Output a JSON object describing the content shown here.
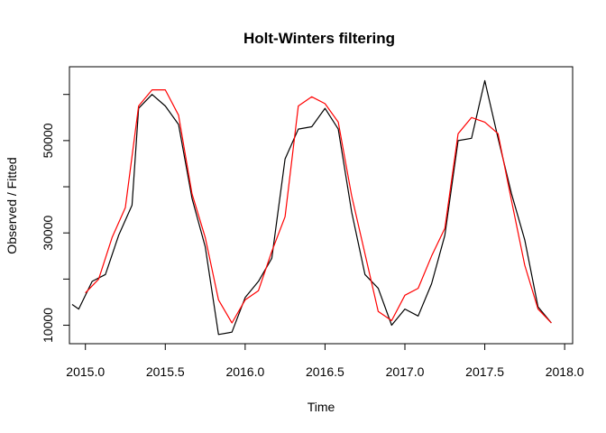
{
  "chart_data": {
    "type": "line",
    "title": "Holt-Winters filtering",
    "xlabel": "Time",
    "ylabel": "Observed / Fitted",
    "xlim": [
      2014.9,
      2018.05
    ],
    "ylim": [
      6000,
      66000
    ],
    "x_ticks": [
      2015.0,
      2015.5,
      2016.0,
      2016.5,
      2017.0,
      2017.5,
      2018.0
    ],
    "x_tick_labels": [
      "2015.0",
      "2015.5",
      "2016.0",
      "2016.5",
      "2017.0",
      "2017.5",
      "2018.0"
    ],
    "y_ticks": [
      10000,
      30000,
      50000
    ],
    "y_tick_labels": [
      "10000",
      "30000",
      "50000"
    ],
    "grid": false,
    "series": [
      {
        "color": "#000000",
        "x": [
          2014.917,
          2014.958,
          2015.042,
          2015.125,
          2015.208,
          2015.292,
          2015.333,
          2015.417,
          2015.5,
          2015.583,
          2015.667,
          2015.75,
          2015.833,
          2015.917,
          2016.0,
          2016.083,
          2016.167,
          2016.25,
          2016.333,
          2016.417,
          2016.5,
          2016.583,
          2016.667,
          2016.75,
          2016.833,
          2016.917,
          2017.0,
          2017.083,
          2017.167,
          2017.25,
          2017.333,
          2017.417,
          2017.5,
          2017.583,
          2017.667,
          2017.75,
          2017.833,
          2017.917
        ],
        "values": [
          14500,
          13500,
          19500,
          21000,
          29500,
          36000,
          57000,
          60000,
          57500,
          53500,
          37500,
          27000,
          8000,
          8500,
          16000,
          19500,
          24500,
          46000,
          52500,
          53000,
          57000,
          52500,
          34500,
          21000,
          18000,
          10000,
          13500,
          12000,
          19000,
          29500,
          50000,
          50500,
          63000,
          50500,
          38500,
          28500,
          14000,
          10500
        ]
      },
      {
        "color": "#ff0000",
        "x": [
          2015.0,
          2015.083,
          2015.167,
          2015.25,
          2015.333,
          2015.417,
          2015.5,
          2015.583,
          2015.667,
          2015.75,
          2015.833,
          2015.917,
          2016.0,
          2016.083,
          2016.167,
          2016.25,
          2016.333,
          2016.417,
          2016.5,
          2016.583,
          2016.667,
          2016.75,
          2016.833,
          2016.917,
          2017.0,
          2017.083,
          2017.167,
          2017.25,
          2017.333,
          2017.417,
          2017.5,
          2017.583,
          2017.667,
          2017.75,
          2017.833,
          2017.917
        ],
        "values": [
          17000,
          20000,
          29000,
          35500,
          57500,
          61000,
          61000,
          55500,
          38500,
          29000,
          15500,
          10500,
          15500,
          17500,
          26000,
          33500,
          57500,
          59500,
          58000,
          54000,
          38000,
          25500,
          13000,
          11000,
          16500,
          18000,
          25000,
          31000,
          51500,
          55000,
          54000,
          51500,
          37000,
          23000,
          13500,
          10500
        ]
      }
    ]
  }
}
